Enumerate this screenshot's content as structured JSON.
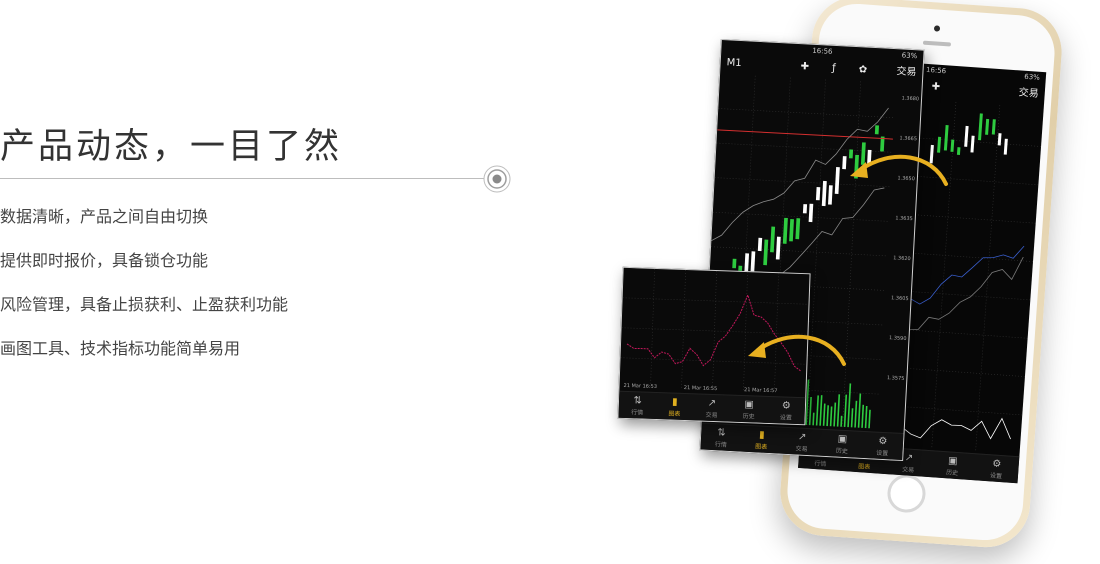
{
  "headline": "产品动态，一目了然",
  "features": [
    "数据清晰，产品之间自由切换",
    "提供即时报价，具备锁仓功能",
    "风险管理，具备止损获利、止盈获利功能",
    "画图工具、技术指标功能简单易用"
  ],
  "phone_screen": {
    "status_time": "16:56",
    "battery": "63%",
    "trade_label": "交易",
    "timeframe": "M1",
    "price_ticks": [
      "1.3680",
      "1.3665",
      "1.3650",
      "1.3635",
      "1.3620",
      "1.3605",
      "1.3590",
      "1.3575"
    ],
    "time_ticks": [
      "21 Mar 16:53",
      "21 Mar 16:55",
      "21 Mar 16:57"
    ],
    "tabs": [
      {
        "label": "行情",
        "icon": "quotes-icon"
      },
      {
        "label": "图表",
        "icon": "chart-icon"
      },
      {
        "label": "交易",
        "icon": "trade-icon"
      },
      {
        "label": "历史",
        "icon": "history-icon"
      },
      {
        "label": "设置",
        "icon": "settings-icon"
      }
    ],
    "active_tab": 1
  },
  "colors": {
    "accent": "#e0b020",
    "candle_up": "#2ecc40",
    "candle_down": "#ffffff",
    "price_line": "#d32f2f",
    "arrow": "#e8b020"
  }
}
